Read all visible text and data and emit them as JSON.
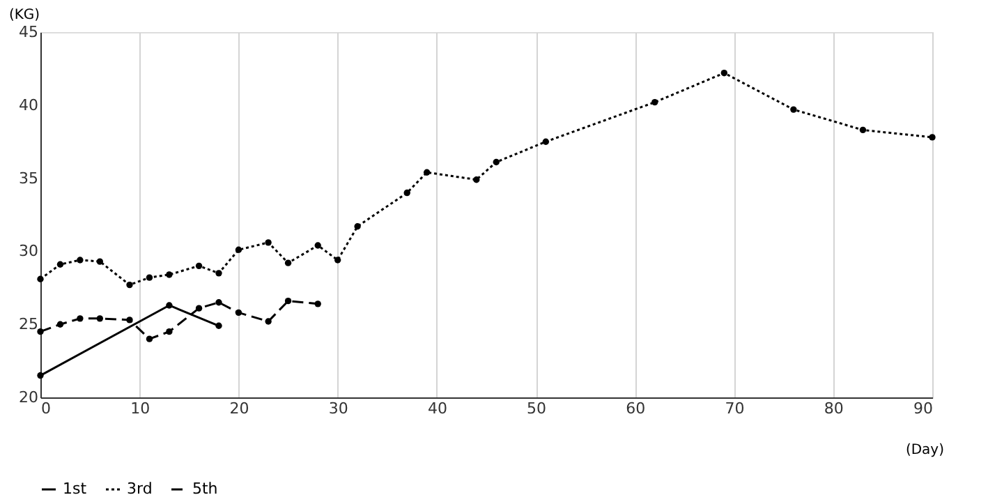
{
  "chart_data": {
    "type": "line",
    "xlabel": "(Day)",
    "ylabel": "(KG)",
    "xlim": [
      0,
      90
    ],
    "xticks": [
      0,
      10,
      20,
      30,
      40,
      50,
      60,
      70,
      80,
      90
    ],
    "ylim": [
      20,
      45
    ],
    "yticks": [
      20,
      25,
      30,
      35,
      40,
      45
    ],
    "grid": "x",
    "legend": "bottom",
    "marker": "circle",
    "series": [
      {
        "name": "1st",
        "color": "#000000",
        "line_style": "solid",
        "x": [
          0,
          13,
          18
        ],
        "values": [
          21.5,
          26.3,
          24.9
        ]
      },
      {
        "name": "3rd",
        "color": "#000000",
        "line_style": "dotted",
        "x": [
          0,
          2,
          4,
          6,
          9,
          11,
          13,
          16,
          18,
          20,
          23,
          25,
          28,
          30,
          32,
          37,
          39,
          44,
          46,
          51,
          62,
          69,
          76,
          83,
          90
        ],
        "values": [
          28.1,
          29.1,
          29.4,
          29.3,
          27.7,
          28.2,
          28.4,
          29.0,
          28.5,
          30.1,
          30.6,
          29.2,
          30.4,
          29.4,
          31.7,
          34.0,
          35.4,
          34.9,
          36.1,
          37.5,
          40.2,
          42.2,
          39.7,
          38.3,
          37.8
        ]
      },
      {
        "name": "5th",
        "color": "#000000",
        "line_style": "dashed",
        "x": [
          0,
          2,
          4,
          6,
          9,
          11,
          13,
          16,
          18,
          20,
          23,
          25,
          28
        ],
        "values": [
          24.5,
          25.0,
          25.4,
          25.4,
          25.3,
          24.0,
          24.5,
          26.1,
          26.5,
          25.8,
          25.2,
          26.6,
          26.4
        ]
      }
    ]
  }
}
